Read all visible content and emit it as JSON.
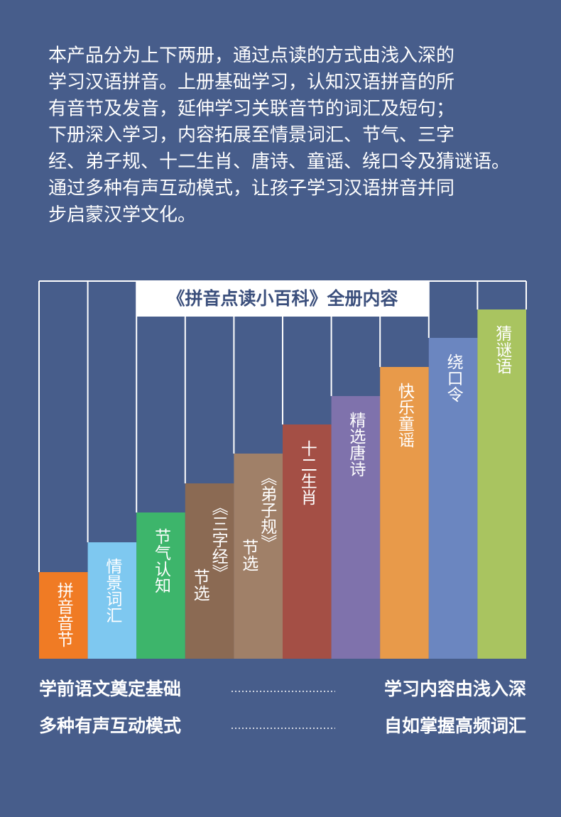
{
  "intro": [
    "本产品分为上下两册，通过点读的方式由浅入深的",
    "学习汉语拼音。上册基础学习，认知汉语拼音的所",
    "有音节及发音，延伸学习关联音节的词汇及短句；",
    "下册深入学习，内容拓展至情景词汇、节气、三字",
    "经、弟子规、十二生肖、唐诗、童谣、绕口令及猜谜语。",
    "通过多种有声互动模式，让孩子学习汉语拼音并同",
    "步启蒙汉学文化。"
  ],
  "diagram": {
    "title": "《拼音点读小百科》全册内容",
    "columns": [
      {
        "lines": [
          "拼音音节"
        ]
      },
      {
        "lines": [
          "情景词汇"
        ]
      },
      {
        "lines": [
          "节气认知"
        ]
      },
      {
        "lines": [
          "《三字经》",
          "节选"
        ]
      },
      {
        "lines": [
          "《弟子规》",
          "节选"
        ]
      },
      {
        "lines": [
          "十二生肖"
        ]
      },
      {
        "lines": [
          "精选唐诗"
        ]
      },
      {
        "lines": [
          "快乐童谣"
        ]
      },
      {
        "lines": [
          "绕口令"
        ]
      },
      {
        "lines": [
          "猜谜语"
        ]
      }
    ]
  },
  "features": [
    {
      "left": "学前语文奠定基础",
      "right": "学习内容由浅入深"
    },
    {
      "left": "多种有声互动模式",
      "right": "自如掌握高频词汇"
    }
  ]
}
